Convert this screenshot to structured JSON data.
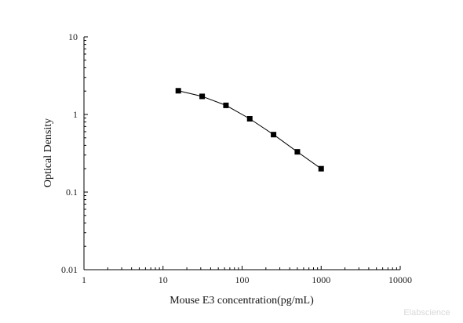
{
  "chart_data": {
    "type": "line",
    "xlabel": "Mouse E3 concentration(pg/mL)",
    "ylabel": "Optical Density",
    "xscale": "log",
    "yscale": "log",
    "xlim": [
      1,
      10000
    ],
    "ylim": [
      0.01,
      10
    ],
    "x_ticks": [
      1,
      10,
      100,
      1000,
      10000
    ],
    "x_tick_labels": [
      "1",
      "10",
      "100",
      "1000",
      "10000"
    ],
    "y_ticks": [
      0.01,
      0.1,
      1,
      10
    ],
    "y_tick_labels": [
      "0.01",
      "0.1",
      "1",
      "10"
    ],
    "grid": false,
    "series": [
      {
        "marker": "square",
        "color": "#000000",
        "x": [
          15.6,
          31.25,
          62.5,
          125,
          250,
          500,
          1000
        ],
        "y": [
          2.02,
          1.71,
          1.31,
          0.88,
          0.55,
          0.33,
          0.2
        ]
      }
    ]
  },
  "watermark": "Elabscience"
}
